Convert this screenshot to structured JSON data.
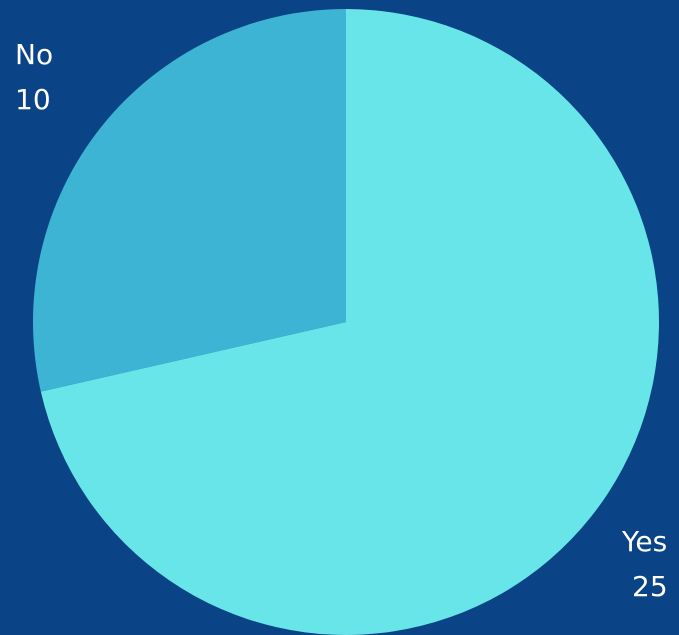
{
  "background_color": "#0B4486",
  "chart_data": {
    "type": "pie",
    "title": "",
    "start_angle_deg": 0,
    "direction": "clockwise",
    "slices": [
      {
        "label": "Yes",
        "value": 25,
        "value_label": "25",
        "color": "#68E5E9"
      },
      {
        "label": "No",
        "value": 10,
        "value_label": "10",
        "color": "#3EB4D5"
      }
    ]
  }
}
